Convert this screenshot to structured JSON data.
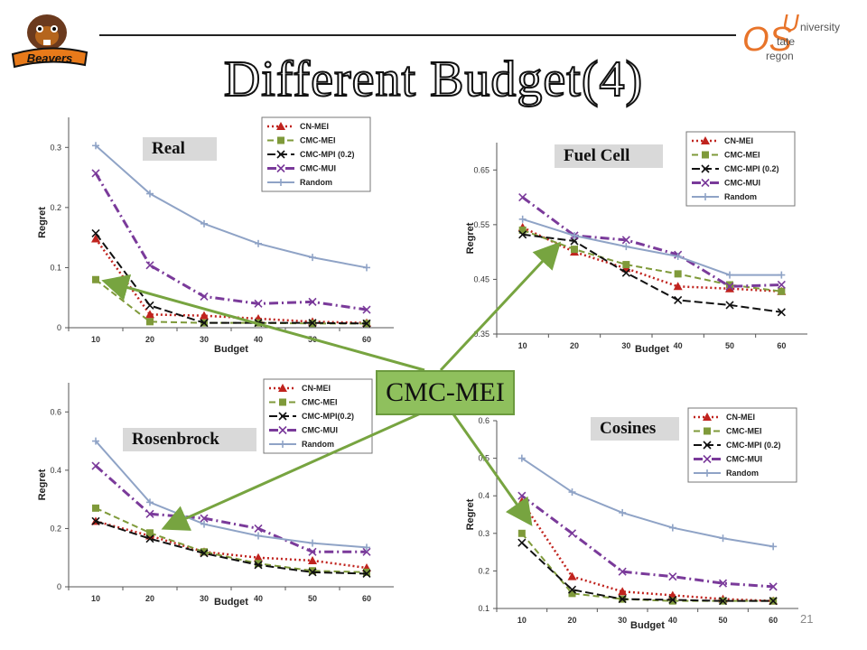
{
  "slide": {
    "title": "Different Budget(4)",
    "page_number": "21",
    "callout_label": "CMC-MEI",
    "left_logo_text": "Beavers",
    "right_logo_text": "OSUniversity State Oregon"
  },
  "colors": {
    "CN-MEI": "#c0231e",
    "CMC-MEI": "#7f9a3a",
    "CMC-MPI": "#111111",
    "CMC-MUI": "#7a3a9a",
    "Random": "#8fa3c6",
    "arrow": "#77a440"
  },
  "chart_data": [
    {
      "name": "Real",
      "type": "line",
      "panel_label": "Real",
      "xlabel": "Budget",
      "ylabel": "Regret",
      "x": [
        10,
        20,
        30,
        40,
        50,
        60
      ],
      "ylim": [
        0,
        0.35
      ],
      "yticks": [
        "0",
        "0.1",
        "0.2",
        "0.3"
      ],
      "ytick_values": [
        0,
        0.1,
        0.2,
        0.3
      ],
      "legend_position": "top-right",
      "series": [
        {
          "name": "CN-MEI",
          "values": [
            0.148,
            0.022,
            0.02,
            0.015,
            0.01,
            0.008
          ]
        },
        {
          "name": "CMC-MEI",
          "values": [
            0.08,
            0.01,
            0.008,
            0.008,
            0.007,
            0.007
          ]
        },
        {
          "name": "CMC-MPI (0.2)",
          "values": [
            0.157,
            0.037,
            0.008,
            0.008,
            0.008,
            0.007
          ]
        },
        {
          "name": "CMC-MUI",
          "values": [
            0.257,
            0.104,
            0.052,
            0.04,
            0.043,
            0.03
          ]
        },
        {
          "name": "Random",
          "values": [
            0.303,
            0.223,
            0.173,
            0.14,
            0.117,
            0.1
          ]
        }
      ]
    },
    {
      "name": "Fuel Cell",
      "type": "line",
      "panel_label": "Fuel Cell",
      "xlabel": "Budget",
      "ylabel": "Regret",
      "x": [
        10,
        20,
        30,
        40,
        50,
        60
      ],
      "ylim": [
        0.35,
        0.7
      ],
      "yticks": [
        "0.35",
        "0.45",
        "0.55",
        "0.65"
      ],
      "ytick_values": [
        0.35,
        0.45,
        0.55,
        0.65
      ],
      "legend_position": "top-right",
      "series": [
        {
          "name": "CN-MEI",
          "values": [
            0.545,
            0.5,
            0.47,
            0.437,
            0.433,
            0.428
          ]
        },
        {
          "name": "CMC-MEI",
          "values": [
            0.54,
            0.505,
            0.477,
            0.46,
            0.44,
            0.428
          ]
        },
        {
          "name": "CMC-MPI (0.2)",
          "values": [
            0.532,
            0.52,
            0.462,
            0.412,
            0.403,
            0.39
          ]
        },
        {
          "name": "CMC-MUI",
          "values": [
            0.6,
            0.53,
            0.522,
            0.495,
            0.437,
            0.44
          ]
        },
        {
          "name": "Random",
          "values": [
            0.56,
            0.53,
            0.51,
            0.492,
            0.458,
            0.458
          ]
        }
      ]
    },
    {
      "name": "Rosenbrock",
      "type": "line",
      "panel_label": "Rosenbrock",
      "xlabel": "Budget",
      "ylabel": "Regret",
      "x": [
        10,
        20,
        30,
        40,
        50,
        60
      ],
      "ylim": [
        0,
        0.7
      ],
      "yticks": [
        "0",
        "0.2",
        "0.4",
        "0.6"
      ],
      "ytick_values": [
        0,
        0.2,
        0.4,
        0.6
      ],
      "legend_position": "top-right",
      "series": [
        {
          "name": "CN-MEI",
          "values": [
            0.225,
            0.175,
            0.12,
            0.1,
            0.09,
            0.065
          ]
        },
        {
          "name": "CMC-MEI",
          "values": [
            0.27,
            0.185,
            0.12,
            0.08,
            0.055,
            0.05
          ]
        },
        {
          "name": "CMC-MPI(0.2)",
          "values": [
            0.225,
            0.165,
            0.115,
            0.075,
            0.05,
            0.045
          ]
        },
        {
          "name": "CMC-MUI",
          "values": [
            0.415,
            0.25,
            0.235,
            0.2,
            0.12,
            0.12
          ]
        },
        {
          "name": "Random",
          "values": [
            0.5,
            0.29,
            0.215,
            0.175,
            0.15,
            0.135
          ]
        }
      ]
    },
    {
      "name": "Cosines",
      "type": "line",
      "panel_label": "Cosines",
      "xlabel": "Budget",
      "ylabel": "Regret",
      "x": [
        10,
        20,
        30,
        40,
        50,
        60
      ],
      "ylim": [
        0.1,
        0.6
      ],
      "yticks": [
        "0.1",
        "0.2",
        "0.3",
        "0.4",
        "0.5",
        "0.6"
      ],
      "ytick_values": [
        0.1,
        0.2,
        0.3,
        0.4,
        0.5,
        0.6
      ],
      "legend_position": "top-right",
      "series": [
        {
          "name": "CN-MEI",
          "values": [
            0.385,
            0.185,
            0.145,
            0.135,
            0.125,
            0.12
          ]
        },
        {
          "name": "CMC-MEI",
          "values": [
            0.3,
            0.14,
            0.125,
            0.12,
            0.12,
            0.12
          ]
        },
        {
          "name": "CMC-MPI (0.2)",
          "values": [
            0.275,
            0.15,
            0.125,
            0.123,
            0.12,
            0.12
          ]
        },
        {
          "name": "CMC-MUI",
          "values": [
            0.4,
            0.3,
            0.198,
            0.185,
            0.167,
            0.158
          ]
        },
        {
          "name": "Random",
          "values": [
            0.5,
            0.41,
            0.355,
            0.315,
            0.287,
            0.265
          ]
        }
      ]
    }
  ]
}
